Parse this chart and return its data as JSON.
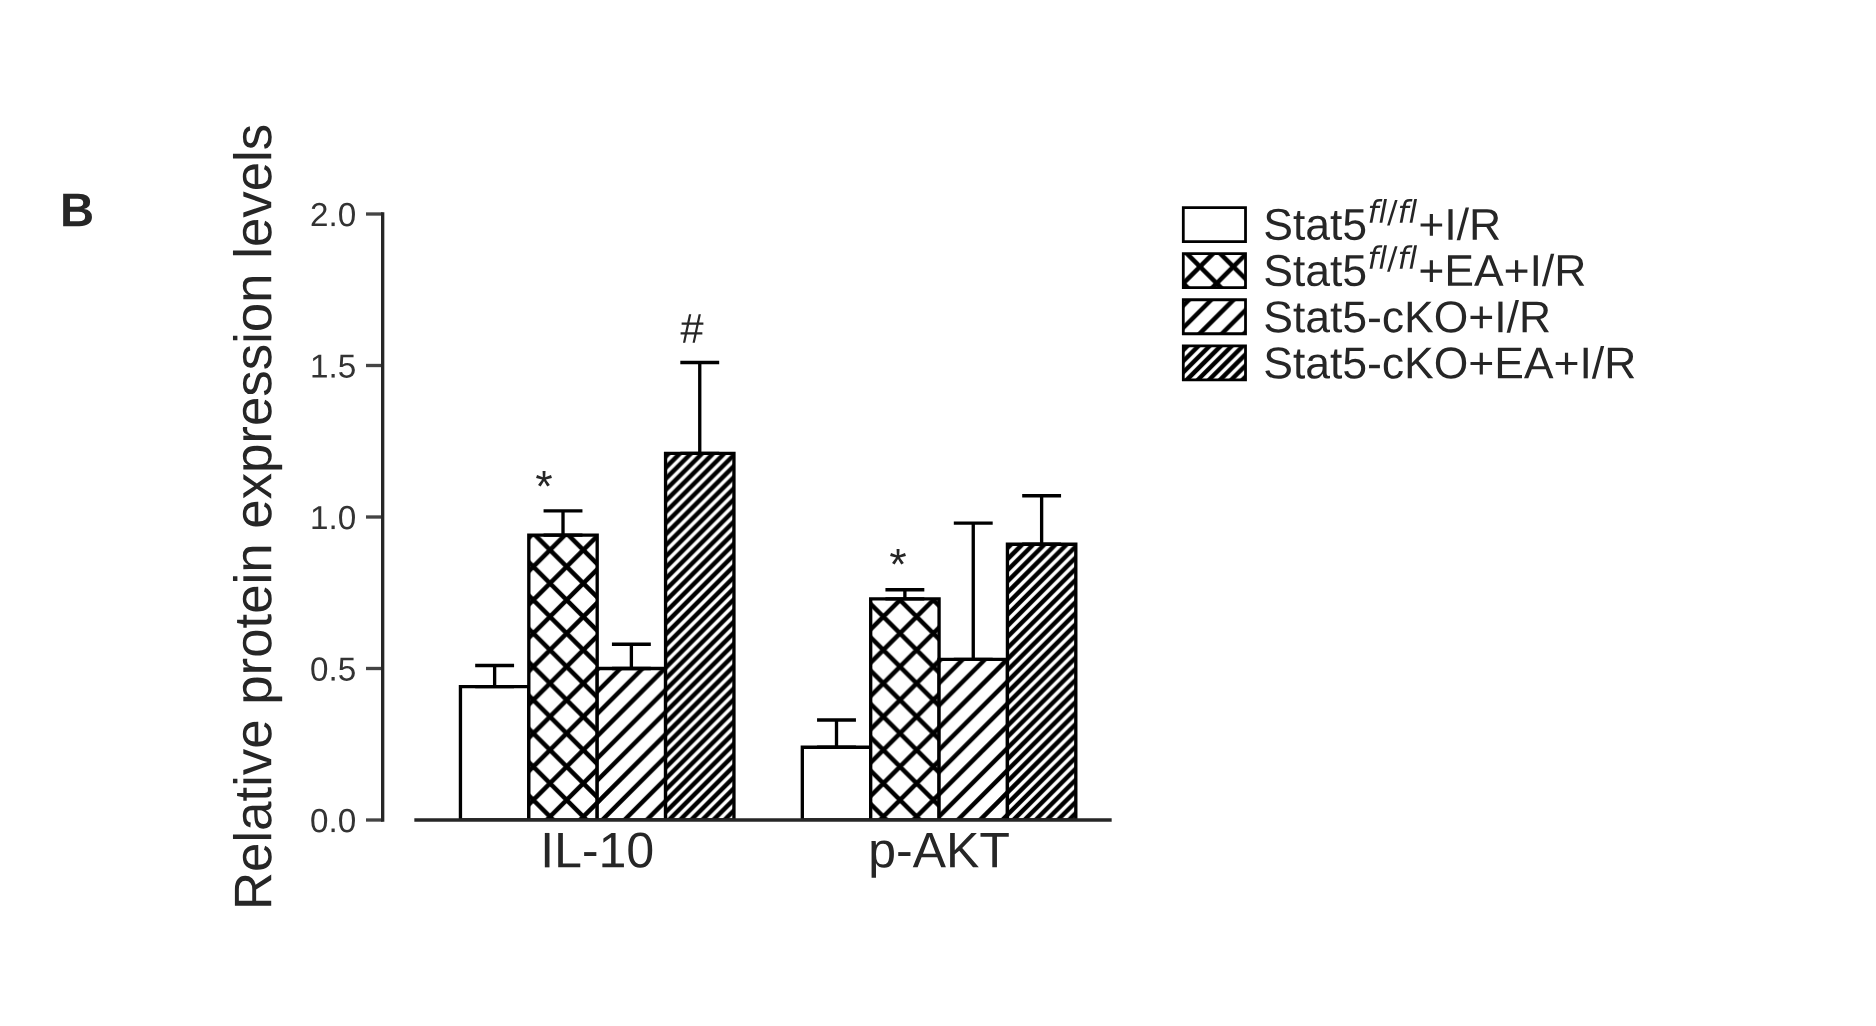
{
  "chart_data": {
    "type": "bar",
    "ylabel": "Relative protein expression levels",
    "categories": [
      "IL-10",
      "p-AKT"
    ],
    "series": [
      {
        "name": "Stat5$^{fl/fl}$+I/R",
        "color": "#ffffff",
        "values": [
          0.44,
          0.24
        ],
        "errors": [
          [
            0.44,
            0.51
          ],
          [
            0.24,
            0.33
          ]
        ]
      },
      {
        "name": "Stat5$^{fl/fl}$+EA+I/R",
        "color": "#000000",
        "values": [
          0.94,
          0.73
        ],
        "errors": [
          [
            0.94,
            1.02
          ],
          [
            0.73,
            0.76
          ]
        ]
      },
      {
        "name": "Stat5-cKO+I/R",
        "color": "#000000",
        "values": [
          0.5,
          0.53
        ],
        "errors": [
          [
            0.5,
            0.58
          ],
          [
            0.53,
            0.98
          ]
        ]
      },
      {
        "name": "Stat5-cKO+EA+I/R",
        "color": "#000000",
        "values": [
          1.21,
          0.91
        ],
        "errors": [
          [
            1.21,
            1.51
          ],
          [
            0.91,
            1.07
          ]
        ]
      }
    ],
    "ylim": [
      0,
      2.0
    ],
    "yticks": [
      {
        "value": 0,
        "label": "0.0"
      },
      {
        "value": 0.5,
        "label": "0.5"
      },
      {
        "value": 1.0,
        "label": "1.0"
      },
      {
        "value": 1.5,
        "label": "1.5"
      },
      {
        "value": 2.0,
        "label": "2.0"
      }
    ],
    "annotations": [
      "B",
      "*",
      "#",
      "*"
    ],
    "legend": "right",
    "grid": false
  }
}
